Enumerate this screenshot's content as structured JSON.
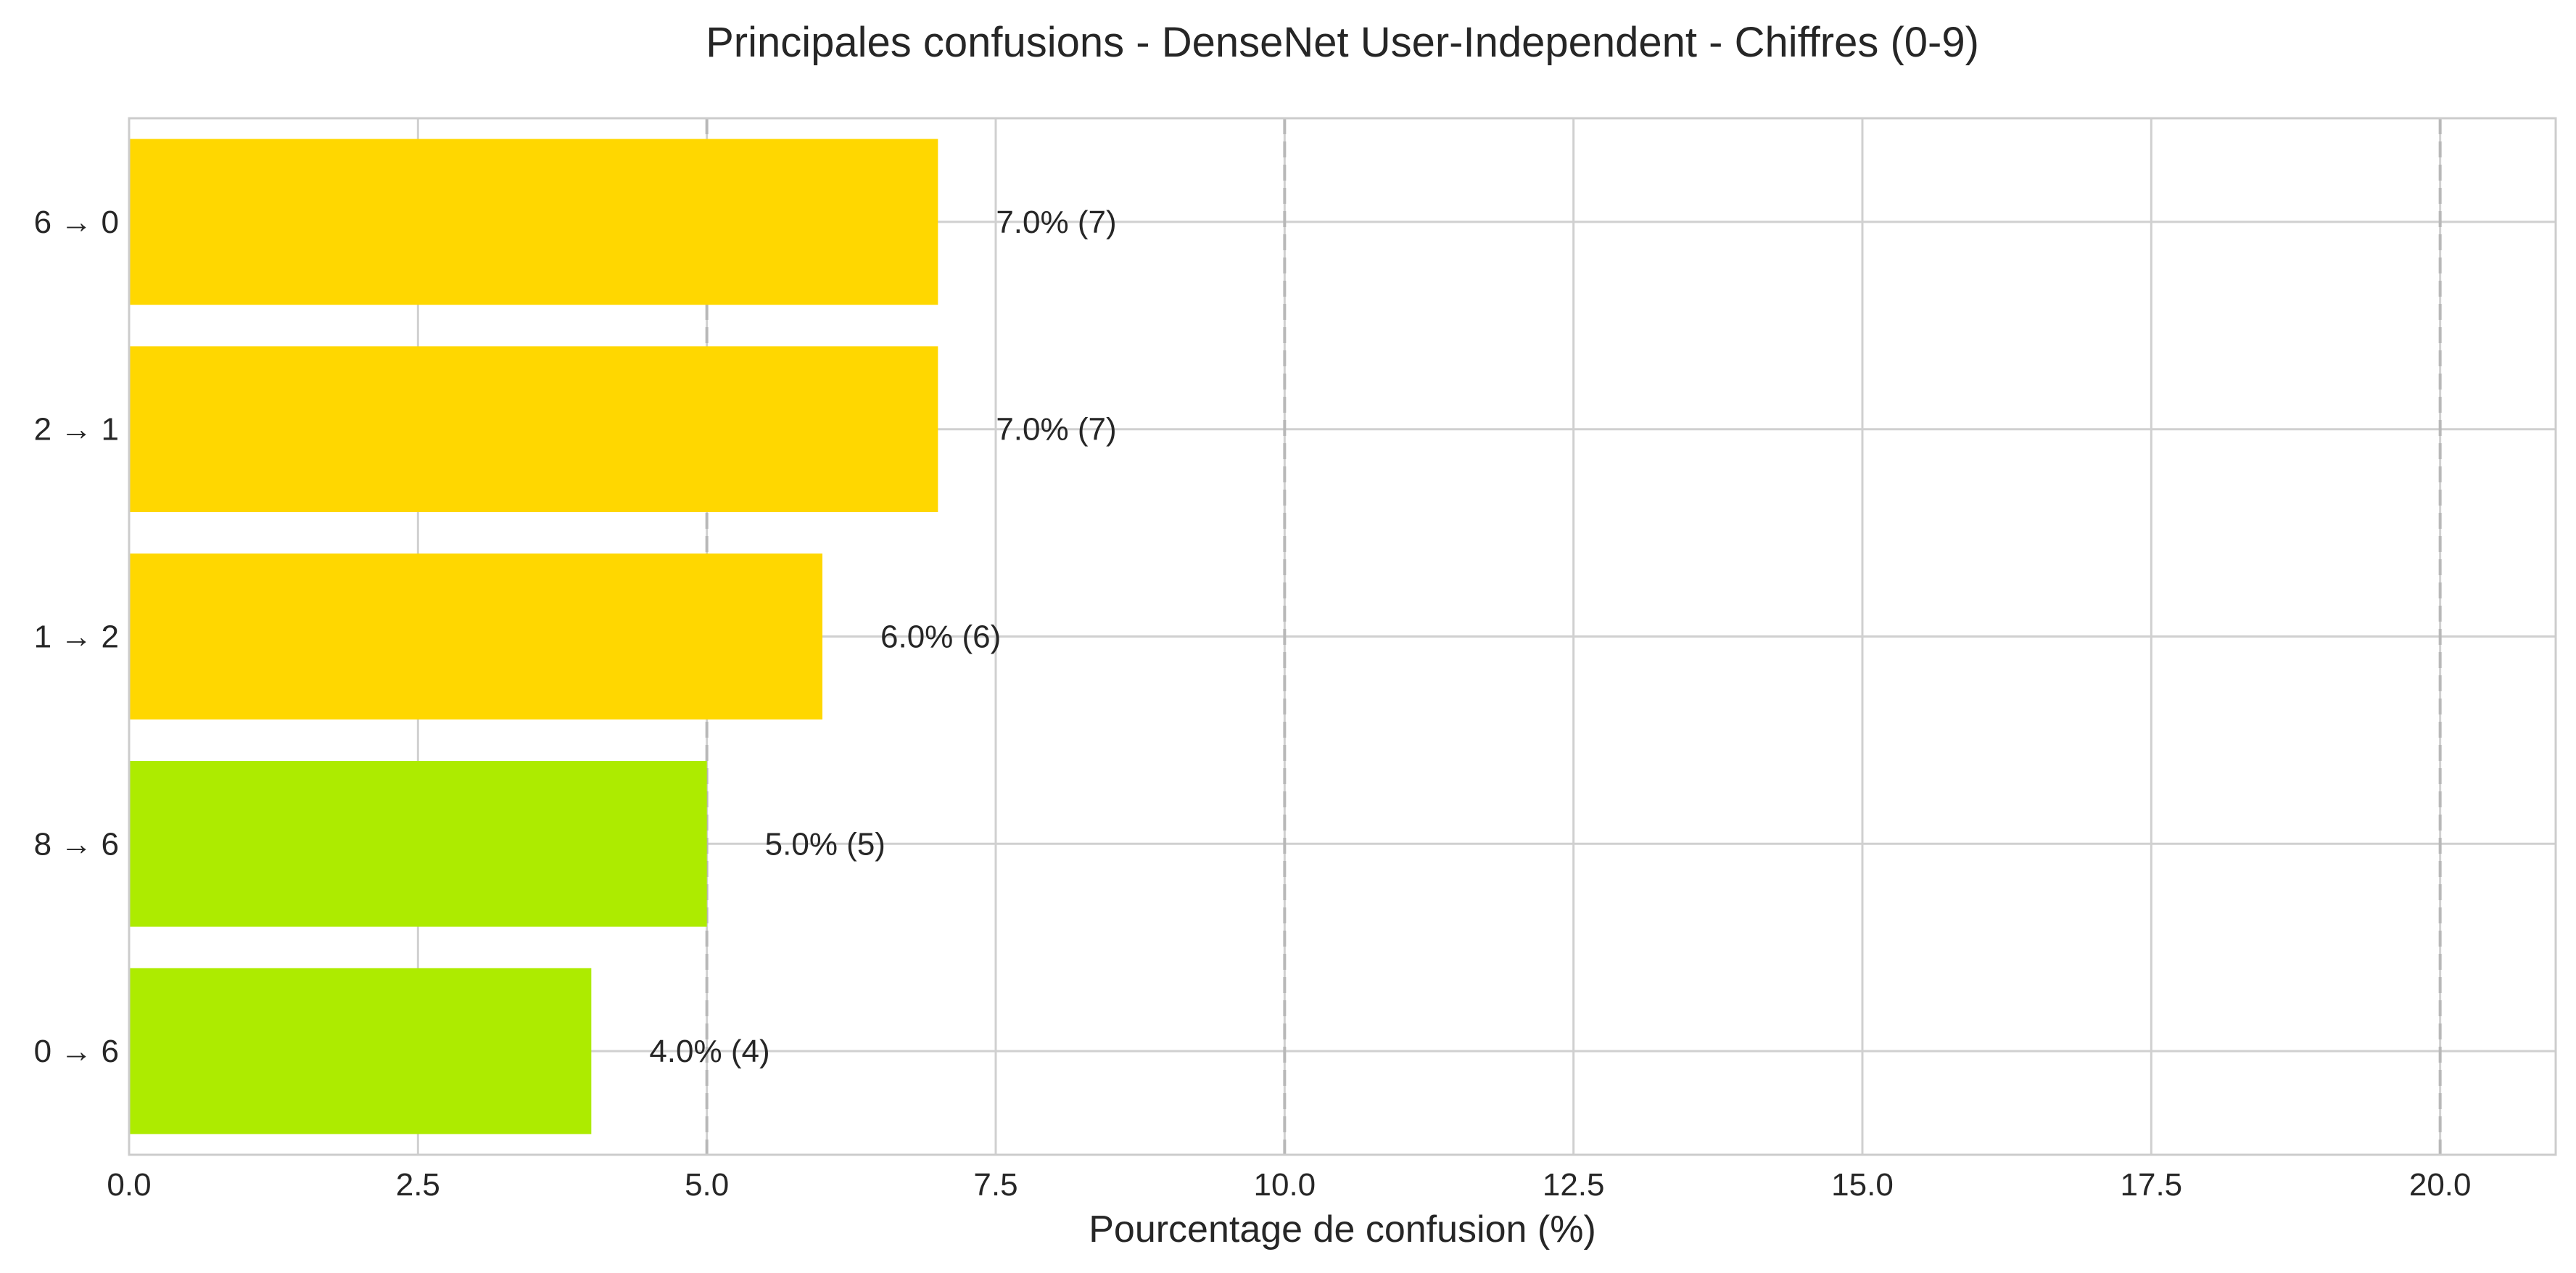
{
  "chart_data": {
    "type": "bar",
    "orientation": "horizontal",
    "title": "Principales confusions - DenseNet User-Independent - Chiffres (0-9)",
    "xlabel": "Pourcentage de confusion (%)",
    "ylabel": "",
    "xlim": [
      0,
      21
    ],
    "xticks": [
      0,
      2.5,
      5,
      7.5,
      10,
      12.5,
      15,
      17.5,
      20
    ],
    "xtick_labels": [
      "0.0",
      "2.5",
      "5.0",
      "7.5",
      "10.0",
      "12.5",
      "15.0",
      "17.5",
      "20.0"
    ],
    "categories": [
      "6 → 0",
      "2 → 1",
      "1 → 2",
      "8 → 6",
      "0 → 6"
    ],
    "values": [
      7.0,
      7.0,
      6.0,
      5.0,
      4.0
    ],
    "counts": [
      7,
      7,
      6,
      5,
      4
    ],
    "value_labels": [
      "7.0% (7)",
      "7.0% (7)",
      "6.0% (6)",
      "5.0% (5)",
      "4.0% (4)"
    ],
    "bar_colors": [
      "#FFD700",
      "#FFD700",
      "#FFD700",
      "#ADEB00",
      "#ADEB00"
    ],
    "reference_lines": [
      5,
      10,
      20
    ],
    "grid": true,
    "colors": {
      "grid": "#d0d0d0",
      "reference_line": "#b8b8b8",
      "frame": "#cccccc",
      "text": "#262626"
    }
  }
}
